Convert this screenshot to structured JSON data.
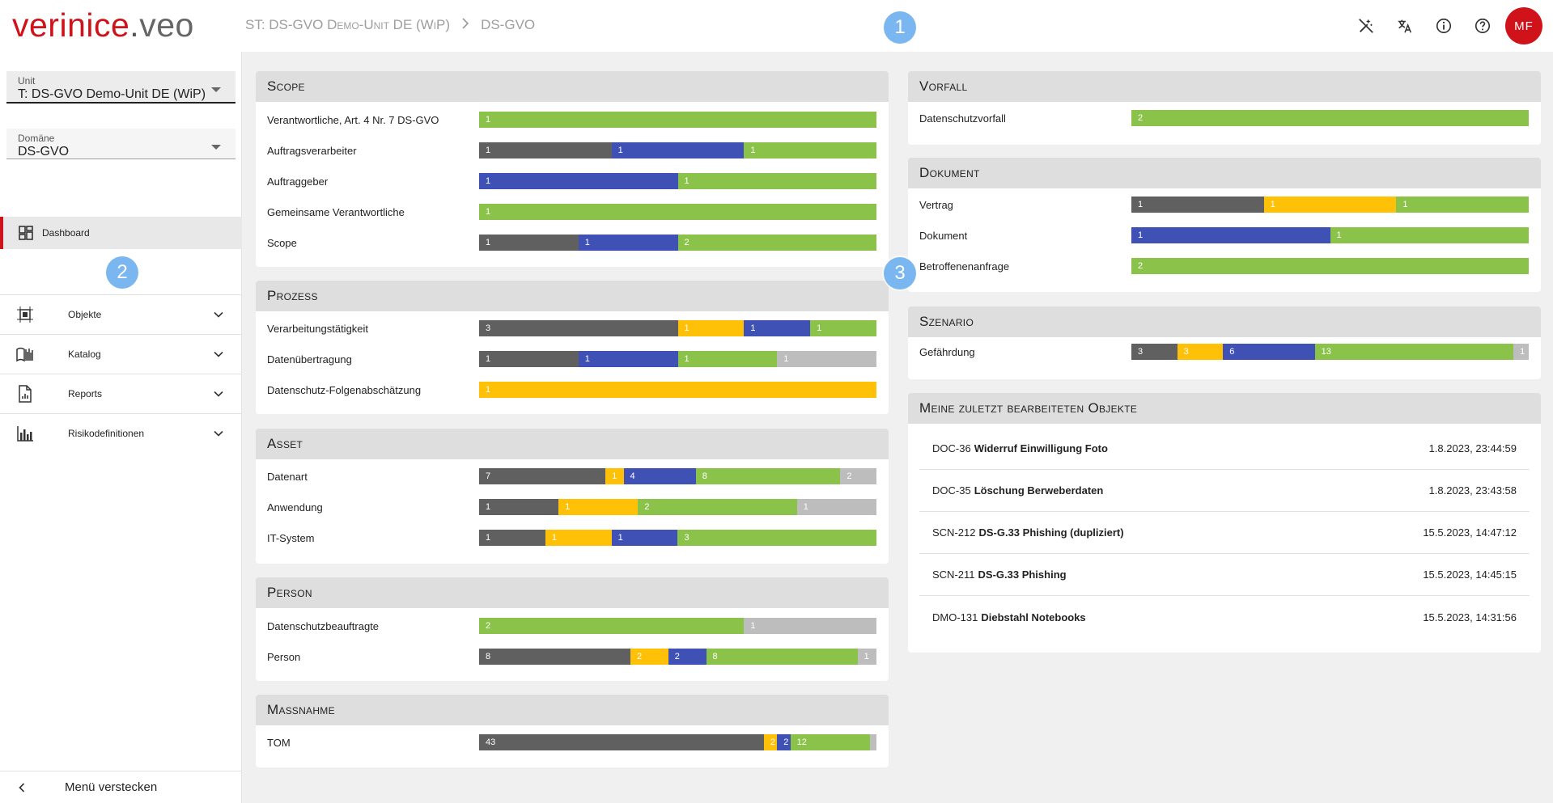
{
  "header": {
    "logo_main": "verinice",
    "logo_dot": ".",
    "logo_sub": "veo",
    "breadcrumb_unit": "ST: DS-GVO Demo-Unit DE (WiP)",
    "breadcrumb_domain": "DS-GVO",
    "avatar_initials": "MF",
    "icons": [
      "magic-off-icon",
      "translate-icon",
      "info-icon",
      "help-icon"
    ]
  },
  "tour_badges": [
    "1",
    "2",
    "3"
  ],
  "sidebar": {
    "unit_label": "Unit",
    "unit_value": "T: DS-GVO Demo-Unit DE (WiP)",
    "domain_label": "Domäne",
    "domain_value": "DS-GVO",
    "dashboard_label": "Dashboard",
    "groups": [
      {
        "label": "Objekte",
        "icon": "objects-icon"
      },
      {
        "label": "Katalog",
        "icon": "catalog-icon"
      },
      {
        "label": "Reports",
        "icon": "report-icon"
      },
      {
        "label": "Risikodefinitionen",
        "icon": "bar-chart-icon"
      }
    ],
    "hide_menu_label": "Menü verstecken"
  },
  "colors": {
    "gray": "#606060",
    "yellow": "#ffc107",
    "blue": "#3f51b5",
    "green": "#8bc34a",
    "light": "#bdbdbd",
    "brand": "#d0121a"
  },
  "cards": {
    "scope": {
      "title": "Scope",
      "rows": [
        {
          "label": "Verantwortliche, Art. 4 Nr. 7 DS-GVO",
          "segments": [
            {
              "c": "green",
              "v": "1",
              "w": 1
            }
          ]
        },
        {
          "label": "Auftragsverarbeiter",
          "segments": [
            {
              "c": "gray",
              "v": "1",
              "w": 1
            },
            {
              "c": "blue",
              "v": "1",
              "w": 1
            },
            {
              "c": "green",
              "v": "1",
              "w": 1
            }
          ]
        },
        {
          "label": "Auftraggeber",
          "segments": [
            {
              "c": "blue",
              "v": "1",
              "w": 1
            },
            {
              "c": "green",
              "v": "1",
              "w": 1
            }
          ]
        },
        {
          "label": "Gemeinsame Verantwortliche",
          "segments": [
            {
              "c": "green",
              "v": "1",
              "w": 1
            }
          ]
        },
        {
          "label": "Scope",
          "segments": [
            {
              "c": "gray",
              "v": "1",
              "w": 1
            },
            {
              "c": "blue",
              "v": "1",
              "w": 1
            },
            {
              "c": "green",
              "v": "2",
              "w": 2
            }
          ]
        }
      ]
    },
    "prozess": {
      "title": "Prozess",
      "rows": [
        {
          "label": "Verarbeitungstätigkeit",
          "segments": [
            {
              "c": "gray",
              "v": "3",
              "w": 3
            },
            {
              "c": "yellow",
              "v": "1",
              "w": 1
            },
            {
              "c": "blue",
              "v": "1",
              "w": 1
            },
            {
              "c": "green",
              "v": "1",
              "w": 1
            }
          ]
        },
        {
          "label": "Datenübertragung",
          "segments": [
            {
              "c": "gray",
              "v": "1",
              "w": 1
            },
            {
              "c": "blue",
              "v": "1",
              "w": 1
            },
            {
              "c": "green",
              "v": "1",
              "w": 1
            },
            {
              "c": "light",
              "v": "1",
              "w": 1
            }
          ]
        },
        {
          "label": "Datenschutz-Folgenabschätzung",
          "segments": [
            {
              "c": "yellow",
              "v": "1",
              "w": 1
            }
          ]
        }
      ]
    },
    "asset": {
      "title": "Asset",
      "rows": [
        {
          "label": "Datenart",
          "segments": [
            {
              "c": "gray",
              "v": "7",
              "w": 7
            },
            {
              "c": "yellow",
              "v": "1",
              "w": 1
            },
            {
              "c": "blue",
              "v": "4",
              "w": 4
            },
            {
              "c": "green",
              "v": "8",
              "w": 8
            },
            {
              "c": "light",
              "v": "2",
              "w": 2
            }
          ]
        },
        {
          "label": "Anwendung",
          "segments": [
            {
              "c": "gray",
              "v": "1",
              "w": 1
            },
            {
              "c": "yellow",
              "v": "1",
              "w": 1
            },
            {
              "c": "green",
              "v": "2",
              "w": 2
            },
            {
              "c": "light",
              "v": "1",
              "w": 1
            }
          ]
        },
        {
          "label": "IT-System",
          "segments": [
            {
              "c": "gray",
              "v": "1",
              "w": 1
            },
            {
              "c": "yellow",
              "v": "1",
              "w": 1
            },
            {
              "c": "blue",
              "v": "1",
              "w": 1
            },
            {
              "c": "green",
              "v": "3",
              "w": 3
            }
          ]
        }
      ]
    },
    "person": {
      "title": "Person",
      "rows": [
        {
          "label": "Datenschutzbeauftragte",
          "segments": [
            {
              "c": "green",
              "v": "2",
              "w": 2
            },
            {
              "c": "light",
              "v": "1",
              "w": 1
            }
          ]
        },
        {
          "label": "Person",
          "segments": [
            {
              "c": "gray",
              "v": "8",
              "w": 8
            },
            {
              "c": "yellow",
              "v": "2",
              "w": 2
            },
            {
              "c": "blue",
              "v": "2",
              "w": 2
            },
            {
              "c": "green",
              "v": "8",
              "w": 8
            },
            {
              "c": "light",
              "v": "1",
              "w": 1
            }
          ]
        }
      ]
    },
    "massnahme": {
      "title": "Maßnahme",
      "rows": [
        {
          "label": "TOM",
          "segments": [
            {
              "c": "gray",
              "v": "43",
              "w": 43
            },
            {
              "c": "yellow",
              "v": "2",
              "w": 2
            },
            {
              "c": "blue",
              "v": "2",
              "w": 2
            },
            {
              "c": "green",
              "v": "12",
              "w": 12
            },
            {
              "c": "light",
              "v": "",
              "w": 1
            }
          ]
        }
      ]
    },
    "vorfall": {
      "title": "Vorfall",
      "rows": [
        {
          "label": "Datenschutzvorfall",
          "segments": [
            {
              "c": "green",
              "v": "2",
              "w": 2
            }
          ]
        }
      ]
    },
    "dokument": {
      "title": "Dokument",
      "rows": [
        {
          "label": "Vertrag",
          "segments": [
            {
              "c": "gray",
              "v": "1",
              "w": 1
            },
            {
              "c": "yellow",
              "v": "1",
              "w": 1
            },
            {
              "c": "green",
              "v": "1",
              "w": 1
            }
          ]
        },
        {
          "label": "Dokument",
          "segments": [
            {
              "c": "blue",
              "v": "1",
              "w": 1
            },
            {
              "c": "green",
              "v": "1",
              "w": 1
            }
          ]
        },
        {
          "label": "Betroffenenanfrage",
          "segments": [
            {
              "c": "green",
              "v": "2",
              "w": 2
            }
          ]
        }
      ]
    },
    "szenario": {
      "title": "Szenario",
      "rows": [
        {
          "label": "Gefährdung",
          "segments": [
            {
              "c": "gray",
              "v": "3",
              "w": 3
            },
            {
              "c": "yellow",
              "v": "3",
              "w": 3
            },
            {
              "c": "blue",
              "v": "6",
              "w": 6
            },
            {
              "c": "green",
              "v": "13",
              "w": 13
            },
            {
              "c": "light",
              "v": "1",
              "w": 1
            }
          ]
        }
      ]
    }
  },
  "recent": {
    "title": "Meine zuletzt bearbeiteten Objekte",
    "items": [
      {
        "id": "DOC-36",
        "name": "Widerruf Einwilligung Foto",
        "date": "1.8.2023, 23:44:59"
      },
      {
        "id": "DOC-35",
        "name": "Löschung Berweberdaten",
        "date": "1.8.2023, 23:43:58"
      },
      {
        "id": "SCN-212",
        "name": "DS-G.33 Phishing (dupliziert)",
        "date": "15.5.2023, 14:47:12"
      },
      {
        "id": "SCN-211",
        "name": "DS-G.33 Phishing",
        "date": "15.5.2023, 14:45:15"
      },
      {
        "id": "DMO-131",
        "name": "Diebstahl Notebooks",
        "date": "15.5.2023, 14:31:56"
      }
    ]
  }
}
